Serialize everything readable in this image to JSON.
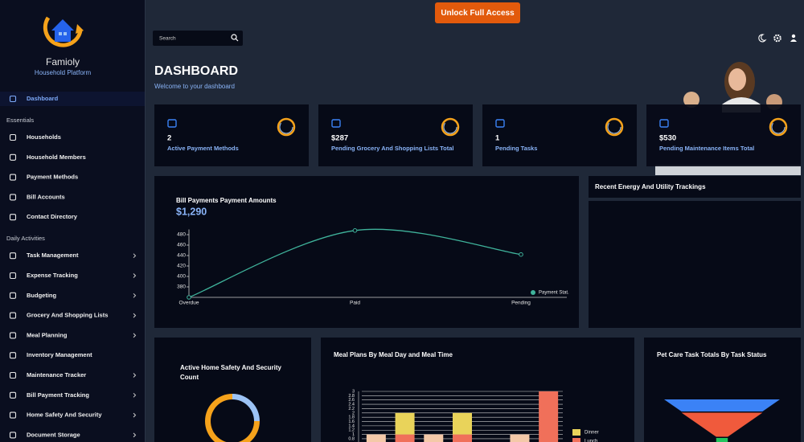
{
  "brand": {
    "name": "Famioly",
    "tagline": "Household Platform"
  },
  "topbar": {
    "button": "Unlock Full Access",
    "search_placeholder": "Search"
  },
  "nav": {
    "home": {
      "label": "Dashboard"
    },
    "sections": [
      {
        "title": "Essentials",
        "items": [
          {
            "label": "Households"
          },
          {
            "label": "Household Members"
          },
          {
            "label": "Payment Methods"
          },
          {
            "label": "Bill Accounts"
          },
          {
            "label": "Contact Directory"
          }
        ]
      },
      {
        "title": "Daily Activities",
        "items": [
          {
            "label": "Task Management",
            "expandable": true
          },
          {
            "label": "Expense Tracking",
            "expandable": true
          },
          {
            "label": "Budgeting",
            "expandable": true
          },
          {
            "label": "Grocery And Shopping Lists",
            "expandable": true
          },
          {
            "label": "Meal Planning",
            "expandable": true
          },
          {
            "label": "Inventory Management",
            "expandable": false
          },
          {
            "label": "Maintenance Tracker",
            "expandable": true
          },
          {
            "label": "Bill Payment Tracking",
            "expandable": true
          },
          {
            "label": "Home Safety And Security",
            "expandable": true
          },
          {
            "label": "Document Storage",
            "expandable": true
          }
        ]
      }
    ]
  },
  "header": {
    "title": "DASHBOARD",
    "subtitle": "Welcome to your dashboard"
  },
  "cards": [
    {
      "value": "2",
      "label": "Active Payment Methods"
    },
    {
      "value": "$287",
      "label": "Pending Grocery And Shopping Lists Total"
    },
    {
      "value": "1",
      "label": "Pending Tasks"
    },
    {
      "value": "$530",
      "label": "Pending Maintenance Items Total"
    }
  ],
  "panels": {
    "energy": {
      "title": "Recent Energy And Utility Trackings"
    }
  },
  "chart_data": [
    {
      "type": "line",
      "title": "Bill Payments Payment Amounts",
      "subtitle": "$1,290",
      "categories": [
        "Overdue",
        "Paid",
        "Pending"
      ],
      "series": [
        {
          "name": "Payment Stat.",
          "color": "#3fb39b",
          "values": [
            360,
            488,
            442
          ]
        }
      ],
      "ylim": [
        360,
        490
      ],
      "yticks": [
        380,
        400,
        420,
        440,
        460,
        480
      ],
      "legend": "right"
    },
    {
      "type": "donut",
      "title": "Active Home Safety And Security Count",
      "values": [
        25,
        75
      ],
      "colors": [
        "#9cc3f5",
        "#f5a21b"
      ]
    },
    {
      "type": "bar",
      "stacked": true,
      "title": "Meal Plans By Meal Day and Meal Time",
      "categories": [
        null,
        null,
        null,
        null,
        null,
        null,
        null
      ],
      "series": [
        {
          "color": "#f4c9a8",
          "values": [
            1,
            0,
            1,
            0,
            0,
            1,
            0
          ]
        },
        {
          "name": "Lunch",
          "color": "#f0705a",
          "values": [
            0,
            1,
            0,
            1,
            0,
            0,
            3
          ]
        },
        {
          "name": "Dinner",
          "color": "#e9d35a",
          "values": [
            0,
            1,
            0,
            1,
            0,
            0,
            0
          ]
        }
      ],
      "ylim": [
        0,
        3
      ],
      "yticks": [
        0.8,
        1,
        1.2,
        1.4,
        1.6,
        1.8,
        2,
        2.2,
        2.4,
        2.6,
        2.8,
        3
      ],
      "grid": true
    },
    {
      "type": "funnel",
      "title": "Pet Care Task Totals By Task Status",
      "values": [
        10,
        7,
        1
      ],
      "colors": [
        "#3b82f6",
        "#f05a3c",
        "#22c55e"
      ]
    }
  ]
}
